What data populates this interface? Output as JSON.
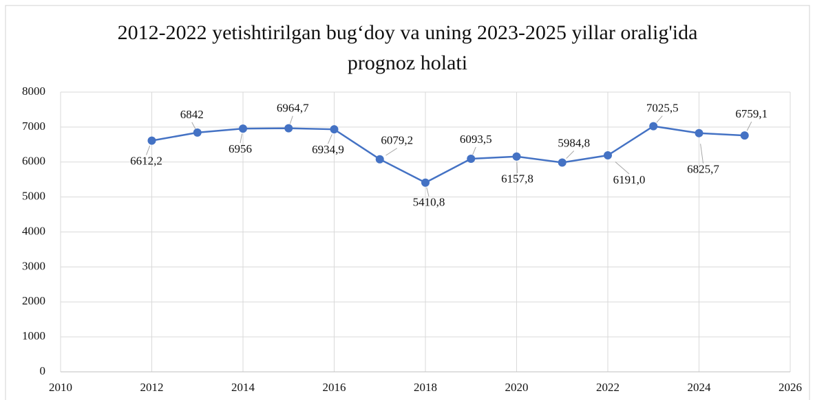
{
  "chart_data": {
    "type": "line",
    "title": "2012-2022 yetishtirilgan bug‘doy va uning 2023-2025 yillar oralig'ida prognoz holati",
    "x": [
      2012,
      2013,
      2014,
      2015,
      2016,
      2017,
      2018,
      2019,
      2020,
      2021,
      2022,
      2023,
      2024,
      2025
    ],
    "series": [
      {
        "color": "#4472c4",
        "values": [
          6612.2,
          6842,
          6956,
          6964.7,
          6934.9,
          6079.2,
          5410.8,
          6093.5,
          6157.8,
          5984.8,
          6191.0,
          7025.5,
          6825.7,
          6759.1
        ],
        "value_labels": [
          "6612,2",
          "6842",
          "6956",
          "6964,7",
          "6934,9",
          "6079,2",
          "5410,8",
          "6093,5",
          "6157,8",
          "5984,8",
          "6191,0",
          "7025,5",
          "6825,7",
          "6759,1"
        ]
      }
    ],
    "xlim": [
      2010,
      2026
    ],
    "xticks": [
      2010,
      2012,
      2014,
      2016,
      2018,
      2020,
      2022,
      2024,
      2026
    ],
    "ylim": [
      0,
      8000
    ],
    "yticks": [
      0,
      1000,
      2000,
      3000,
      4000,
      5000,
      6000,
      7000,
      8000
    ],
    "grid": true
  }
}
